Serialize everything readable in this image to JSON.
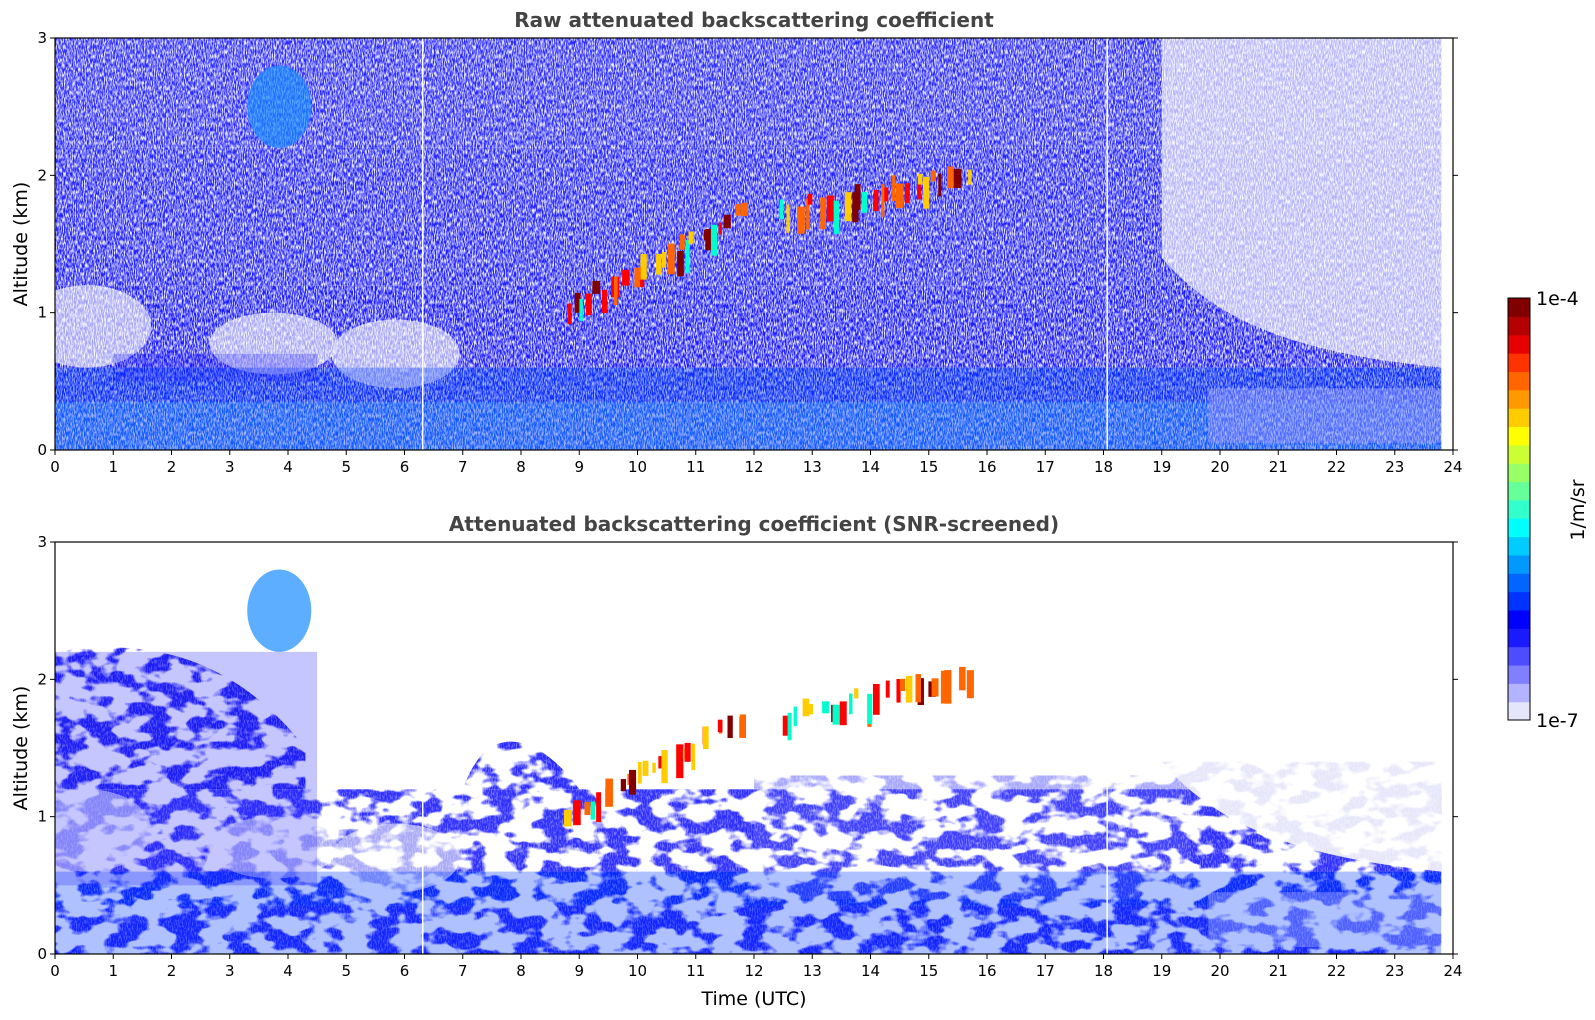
{
  "chart_data": [
    {
      "type": "heatmap",
      "title": "Raw attenuated backscattering coefficient",
      "xlabel": "",
      "ylabel": "Altitude (km)",
      "xlim": [
        0,
        24
      ],
      "ylim": [
        0,
        3
      ],
      "xticks": [
        "0",
        "1",
        "2",
        "3",
        "4",
        "5",
        "6",
        "7",
        "8",
        "9",
        "10",
        "11",
        "12",
        "13",
        "14",
        "15",
        "16",
        "17",
        "18",
        "19",
        "20",
        "21",
        "22",
        "23",
        "24"
      ],
      "yticks": [
        "0",
        "1",
        "2",
        "3"
      ],
      "data_end_hour": 23.8,
      "gaps_hour": [
        6.3,
        18.05
      ],
      "features": [
        {
          "name": "boundary-layer",
          "x_range": [
            0,
            23.8
          ],
          "y_range": [
            0,
            0.6
          ],
          "level": "moderate"
        },
        {
          "name": "residual-layer-top",
          "x_range": [
            1,
            4.5
          ],
          "y_range": [
            0.5,
            0.7
          ],
          "level": "moderate"
        },
        {
          "name": "rising-cloud-layer",
          "x_range": [
            8.8,
            11.8
          ],
          "y_range": [
            1.0,
            1.7
          ],
          "level": "high"
        },
        {
          "name": "cloud-cells",
          "x_range": [
            12.5,
            15.6
          ],
          "y_range": [
            1.7,
            2.0
          ],
          "level": "high"
        },
        {
          "name": "aerosol-patch",
          "x_range": [
            3.3,
            4.4
          ],
          "y_range": [
            2.2,
            2.8
          ],
          "level": "moderate"
        }
      ]
    },
    {
      "type": "heatmap",
      "title": "Attenuated backscattering coefficient (SNR-screened)",
      "xlabel": "Time (UTC)",
      "ylabel": "Altitude (km)",
      "xlim": [
        0,
        24
      ],
      "ylim": [
        0,
        3
      ],
      "xticks": [
        "0",
        "1",
        "2",
        "3",
        "4",
        "5",
        "6",
        "7",
        "8",
        "9",
        "10",
        "11",
        "12",
        "13",
        "14",
        "15",
        "16",
        "17",
        "18",
        "19",
        "20",
        "21",
        "22",
        "23",
        "24"
      ],
      "yticks": [
        "0",
        "1",
        "2",
        "3"
      ],
      "data_end_hour": 23.8,
      "gaps_hour": [
        6.3,
        18.05
      ],
      "features": [
        {
          "name": "boundary-layer",
          "x_range": [
            0,
            23.8
          ],
          "y_range": [
            0,
            0.6
          ],
          "level": "moderate"
        },
        {
          "name": "aerosol-layer",
          "x_range": [
            0,
            4.5
          ],
          "y_range": [
            0.5,
            2.2
          ],
          "level": "moderate"
        },
        {
          "name": "rising-cloud-layer",
          "x_range": [
            8.8,
            11.8
          ],
          "y_range": [
            1.0,
            1.7
          ],
          "level": "high"
        },
        {
          "name": "cloud-cells",
          "x_range": [
            12.5,
            15.6
          ],
          "y_range": [
            1.7,
            2.0
          ],
          "level": "high"
        },
        {
          "name": "aerosol-patch",
          "x_range": [
            3.3,
            4.4
          ],
          "y_range": [
            2.2,
            2.8
          ],
          "level": "moderate"
        }
      ]
    }
  ],
  "colorbar": {
    "max_label": "1e-4",
    "min_label": "1e-7",
    "unit_label": "1/m/sr",
    "colors": [
      "#e6e6fa",
      "#b3b3ff",
      "#8080ff",
      "#4d4dff",
      "#1a1aff",
      "#0000ff",
      "#0033ff",
      "#0066ff",
      "#0099ff",
      "#00ccff",
      "#00ffff",
      "#33ffcc",
      "#66ff99",
      "#99ff66",
      "#ccff33",
      "#ffff00",
      "#ffcc00",
      "#ff9900",
      "#ff6600",
      "#ff3300",
      "#e60000",
      "#b30000",
      "#800000"
    ]
  }
}
